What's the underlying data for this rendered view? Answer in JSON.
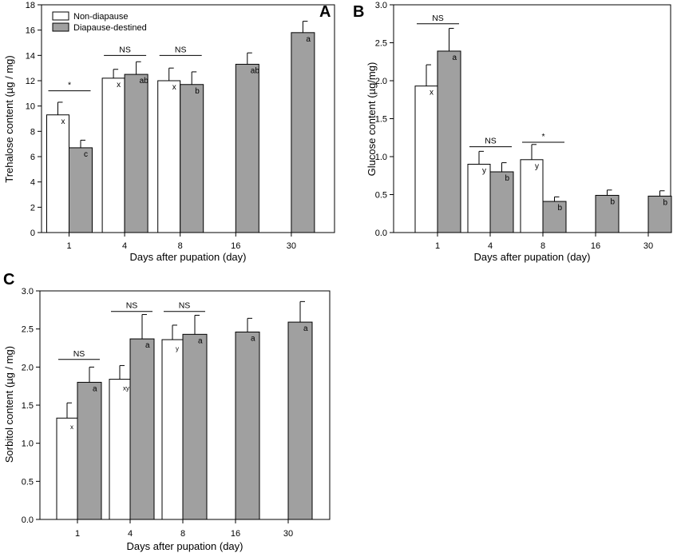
{
  "colors": {
    "non_diapause": "#ffffff",
    "diapause": "#a0a0a0",
    "stroke": "#000000"
  },
  "legend": [
    "Non-diapause",
    "Diapause-destined"
  ],
  "chart_data": [
    {
      "panel": "A",
      "type": "bar",
      "xlabel": "Days after pupation (day)",
      "ylabel": "Trehalose content (µg / mg)",
      "ylim": [
        0,
        18
      ],
      "yticks": [
        0,
        2,
        4,
        6,
        8,
        10,
        12,
        14,
        16,
        18
      ],
      "tick_labels": [
        "0",
        "2",
        "4",
        "6",
        "8",
        "10",
        "12",
        "14",
        "16",
        "18"
      ],
      "categories": [
        "1",
        "4",
        "8",
        "16",
        "30"
      ],
      "legend_position": "top-left",
      "series": [
        {
          "name": "Non-diapause",
          "values": [
            9.3,
            12.2,
            12.0,
            null,
            null
          ],
          "errors": [
            1.0,
            0.7,
            1.0,
            null,
            null
          ],
          "letters": [
            "x",
            "x",
            "x",
            null,
            null
          ]
        },
        {
          "name": "Diapause-destined",
          "values": [
            6.7,
            12.5,
            11.7,
            13.3,
            15.8
          ],
          "errors": [
            0.6,
            1.0,
            1.0,
            0.9,
            0.9
          ],
          "letters": [
            "c",
            "ab",
            "b",
            "ab",
            "a"
          ]
        }
      ],
      "comparisons": [
        {
          "category": "1",
          "label": "*",
          "value": 11.2
        },
        {
          "category": "4",
          "label": "NS",
          "value": 14.0
        },
        {
          "category": "8",
          "label": "NS",
          "value": 14.0
        }
      ]
    },
    {
      "panel": "B",
      "type": "bar",
      "xlabel": "Days after pupation (day)",
      "ylabel": "Glucose content (µg/mg)",
      "ylim": [
        0,
        3
      ],
      "yticks": [
        0,
        0.5,
        1,
        1.5,
        2,
        2.5,
        3
      ],
      "tick_labels": [
        "0.0",
        "0.5",
        "1.0",
        "1.5",
        "2.0",
        "2.5",
        "3.0"
      ],
      "categories": [
        "1",
        "4",
        "8",
        "16",
        "30"
      ],
      "series": [
        {
          "name": "Non-diapause",
          "values": [
            1.93,
            0.9,
            0.96,
            null,
            null
          ],
          "errors": [
            0.28,
            0.17,
            0.2,
            null,
            null
          ],
          "letters": [
            "x",
            "y",
            "y",
            null,
            null
          ]
        },
        {
          "name": "Diapause-destined",
          "values": [
            2.39,
            0.8,
            0.41,
            0.49,
            0.48
          ],
          "errors": [
            0.3,
            0.12,
            0.06,
            0.07,
            0.07
          ],
          "letters": [
            "a",
            "b",
            "b",
            "b",
            "b"
          ]
        }
      ],
      "comparisons": [
        {
          "category": "1",
          "label": "NS",
          "value": 2.75
        },
        {
          "category": "4",
          "label": "NS",
          "value": 1.13
        },
        {
          "category": "8",
          "label": "*",
          "value": 1.19
        }
      ]
    },
    {
      "panel": "C",
      "type": "bar",
      "xlabel": "Days after pupation (day)",
      "ylabel": "Sorbitol content (µg / mg)",
      "ylim": [
        0,
        3
      ],
      "yticks": [
        0,
        0.5,
        1,
        1.5,
        2,
        2.5,
        3
      ],
      "tick_labels": [
        "0.0",
        "0.5",
        "1.0",
        "1.5",
        "2.0",
        "2.5",
        "3.0"
      ],
      "categories": [
        "1",
        "4",
        "8",
        "16",
        "30"
      ],
      "series": [
        {
          "name": "Non-diapause",
          "values": [
            1.33,
            1.84,
            2.36,
            null,
            null
          ],
          "errors": [
            0.2,
            0.18,
            0.19,
            null,
            null
          ],
          "letters": [
            "x",
            "xy",
            "y",
            null,
            null
          ]
        },
        {
          "name": "Diapause-destined",
          "values": [
            1.8,
            2.37,
            2.43,
            2.46,
            2.59
          ],
          "errors": [
            0.2,
            0.32,
            0.25,
            0.18,
            0.27
          ],
          "letters": [
            "a",
            "a",
            "a",
            "a",
            "a"
          ]
        }
      ],
      "comparisons": [
        {
          "category": "1",
          "label": "NS",
          "value": 2.1
        },
        {
          "category": "4",
          "label": "NS",
          "value": 2.73
        },
        {
          "category": "8",
          "label": "NS",
          "value": 2.73
        }
      ]
    }
  ]
}
